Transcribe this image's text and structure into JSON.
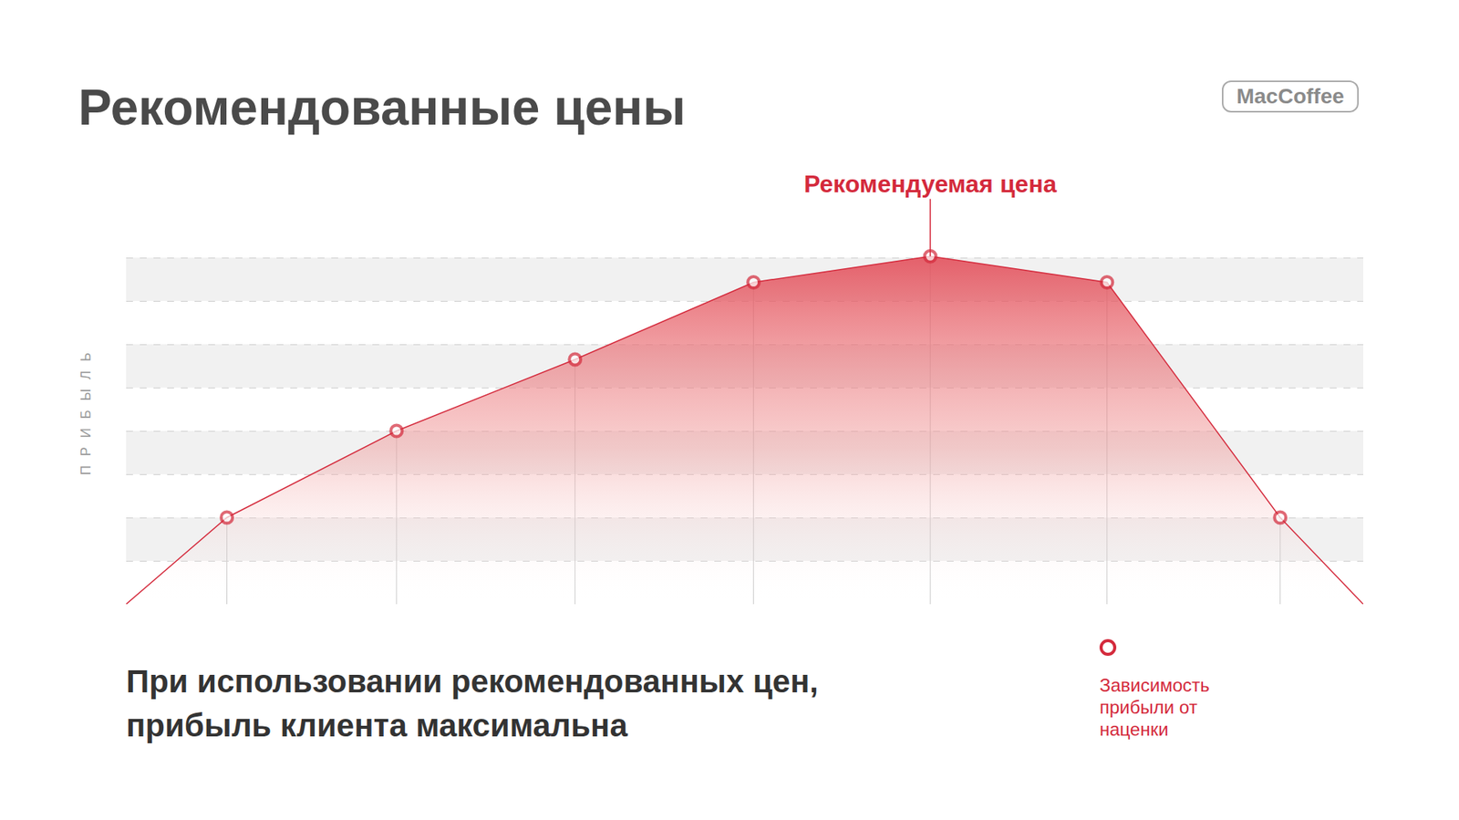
{
  "chart_data": {
    "type": "line",
    "title": "Рекомендованные цены",
    "y_label": "ПРИБЫЛЬ",
    "x": [
      0,
      0.57,
      1.53,
      2.54,
      3.55,
      4.55,
      5.55,
      6.53,
      7
    ],
    "series": [
      {
        "name": "Зависимость прибыли от наценки",
        "color": "#d42a3c",
        "values": [
          0,
          2,
          4,
          5.65,
          7.43,
          8.03,
          7.43,
          2,
          0
        ]
      }
    ],
    "xlim": [
      0,
      7
    ],
    "ylim": [
      0,
      9
    ],
    "yticks": [
      0,
      1,
      2,
      3,
      4,
      5,
      6,
      7,
      8,
      9
    ],
    "grid": true,
    "tick_labels": false,
    "legend": "bottom right",
    "annotations": [
      {
        "text": "Рекомендуемая цена",
        "x": 4.55,
        "y": 8.03
      }
    ]
  },
  "caption": "При использовании рекомендованных цен, прибыль клиента максимальна",
  "logo": "MacCoffee"
}
